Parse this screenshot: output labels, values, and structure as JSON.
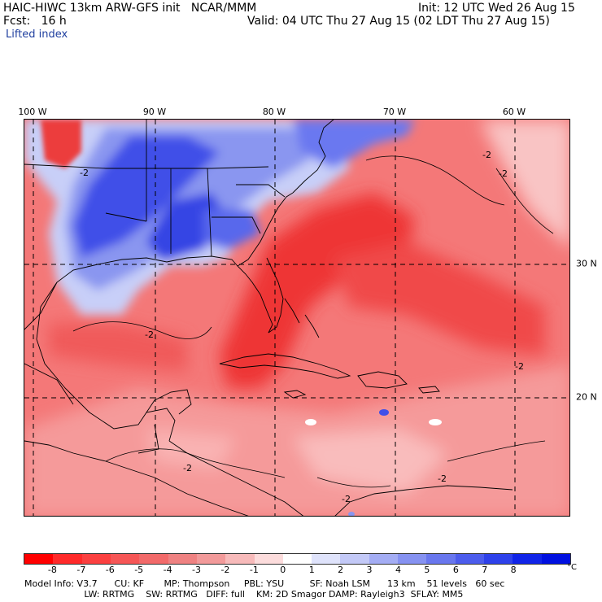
{
  "header": {
    "line1_left": "HAIC-HIWC 13km ARW-GFS init   NCAR/MMM",
    "line1_right": "Init: 12 UTC Wed 26 Aug 15",
    "line2_left": "Fcst:   16 h",
    "line2_right": "Valid: 04 UTC Thu 27 Aug 15 (02 LDT Thu 27 Aug 15)",
    "field": "Lifted index"
  },
  "map": {
    "lon_labels": [
      "100 W",
      "90 W",
      "80 W",
      "70 W",
      "60 W"
    ],
    "lat_labels": [
      "30 N",
      "20 N"
    ],
    "contour_label": "-2",
    "colors": {
      "deep_red": "#e8202a",
      "red": "#f04a4a",
      "light_red": "#f7a0a0",
      "pink": "#fbd0d0",
      "white": "#ffffff",
      "light_blue": "#c8cff8",
      "blue": "#6a78f0",
      "deep_blue": "#1d2fe0"
    }
  },
  "colorbar": {
    "ticks": [
      "-8",
      "-7",
      "-6",
      "-5",
      "-4",
      "-3",
      "-2",
      "-1",
      "0",
      "1",
      "2",
      "3",
      "4",
      "5",
      "6",
      "7",
      "8"
    ],
    "unit": "°C",
    "colors": [
      "#ff0000",
      "#ff2a2a",
      "#fb4040",
      "#f65656",
      "#f26a6a",
      "#ef8282",
      "#f29a9a",
      "#f7baba",
      "#fcdcdc",
      "#ffffff",
      "#dfe3fb",
      "#c3c9f7",
      "#a4adf4",
      "#8692f1",
      "#6977ee",
      "#4c5cec",
      "#2e41ea",
      "#1024e8",
      "#0010e0"
    ]
  },
  "info": {
    "line1": "Model Info: V3.7      CU: KF       MP: Thompson     PBL: YSU         SF: Noah LSM      13 km    51 levels   60 sec",
    "line2": "                     LW: RRTMG    SW: RRTMG   DIFF: full    KM: 2D Smagor DAMP: Rayleigh3  SFLAY: MM5"
  }
}
